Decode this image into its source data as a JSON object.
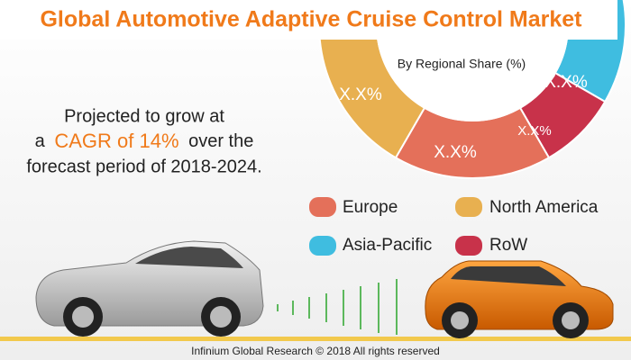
{
  "header": {
    "title": "Global Automotive Adaptive Cruise Control Market"
  },
  "projection": {
    "line1": "Projected to grow at",
    "line2_prefix": "a",
    "line2_highlight": "CAGR of 14%",
    "line2_suffix": "over the",
    "line3": "forecast period of 2018-2024."
  },
  "donut": {
    "subtitle": "By Regional Share (%)",
    "segment_labels": [
      "X.X%",
      "X.X%",
      "X.X%",
      "X.X%"
    ]
  },
  "legend": [
    "Europe",
    "North America",
    "Asia-Pacific",
    "RoW"
  ],
  "footer": "Infinium Global Research © 2018 All rights reserved"
}
